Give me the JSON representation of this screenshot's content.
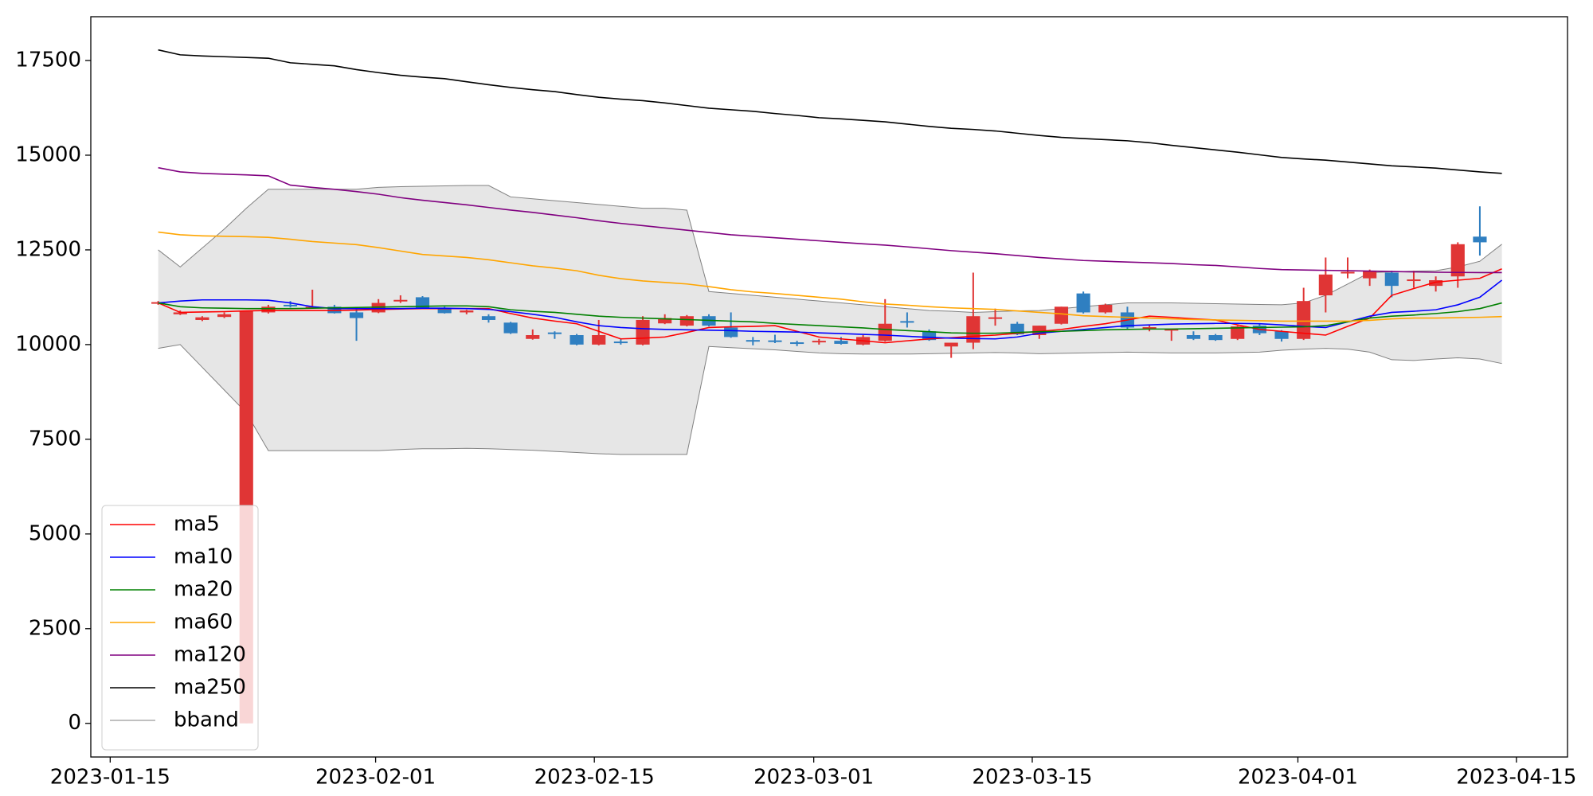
{
  "chart_data": {
    "type": "candlestick",
    "x": [
      0,
      1,
      2,
      3,
      4,
      5,
      6,
      7,
      8,
      9,
      10,
      11,
      12,
      13,
      14,
      15,
      16,
      17,
      18,
      19,
      20,
      21,
      22,
      23,
      24,
      25,
      26,
      27,
      28,
      29,
      30,
      31,
      32,
      33,
      34,
      35,
      36,
      37,
      38,
      39,
      40,
      41,
      42,
      43,
      44,
      45,
      46,
      47,
      48,
      49,
      50,
      51,
      52,
      53,
      54,
      55,
      56,
      57,
      58,
      59,
      60,
      61
    ],
    "open": [
      11100,
      10800,
      10650,
      10730,
      0,
      10850,
      11050,
      10980,
      11000,
      10850,
      10850,
      11150,
      11250,
      10950,
      10850,
      10750,
      10580,
      10150,
      10320,
      10250,
      10000,
      10080,
      10000,
      10560,
      10500,
      10750,
      10450,
      10120,
      10110,
      10060,
      10070,
      10100,
      10000,
      10100,
      10620,
      10350,
      9950,
      10050,
      10680,
      10550,
      10250,
      10550,
      11350,
      10850,
      10850,
      10440,
      10400,
      10250,
      10250,
      10150,
      10500,
      10350,
      10150,
      11300,
      11880,
      11750,
      11900,
      11680,
      11550,
      11800,
      12850,
      null
    ],
    "high": [
      11150,
      10900,
      10750,
      10850,
      10900,
      11050,
      11150,
      11450,
      11050,
      10950,
      11200,
      11300,
      11280,
      11000,
      10920,
      10800,
      10600,
      10400,
      10350,
      10280,
      10650,
      10150,
      10750,
      10800,
      10780,
      10800,
      10850,
      10200,
      10260,
      10100,
      10150,
      10200,
      10250,
      11200,
      10850,
      10400,
      10050,
      11900,
      10950,
      10600,
      10500,
      11000,
      11400,
      11080,
      11000,
      10520,
      10420,
      10350,
      10280,
      10500,
      10550,
      10380,
      11500,
      12300,
      12300,
      11980,
      11950,
      11950,
      11800,
      12700,
      13650,
      null
    ],
    "low": [
      11050,
      10780,
      10620,
      10700,
      0,
      10820,
      10980,
      10950,
      10820,
      10100,
      10830,
      11100,
      10950,
      10820,
      10800,
      10580,
      10280,
      10130,
      10150,
      9980,
      9980,
      10000,
      9980,
      10540,
      10480,
      10480,
      10180,
      9980,
      10040,
      9960,
      10000,
      10000,
      9980,
      10080,
      10450,
      10100,
      9650,
      9880,
      10500,
      10250,
      10150,
      10530,
      10820,
      10820,
      10400,
      10350,
      10100,
      10120,
      10100,
      10120,
      10250,
      10080,
      10120,
      10850,
      11750,
      11550,
      11250,
      11500,
      11400,
      11500,
      12350,
      null
    ],
    "close": [
      11120,
      10850,
      10720,
      10800,
      10880,
      11000,
      11030,
      11000,
      10830,
      10700,
      11100,
      11180,
      10960,
      10830,
      10900,
      10650,
      10300,
      10250,
      10280,
      10000,
      10250,
      10050,
      10650,
      10700,
      10750,
      10500,
      10200,
      10080,
      10080,
      10030,
      10100,
      10020,
      10200,
      10550,
      10580,
      10120,
      10050,
      10750,
      10720,
      10270,
      10500,
      11000,
      10850,
      11050,
      10450,
      10460,
      10410,
      10150,
      10120,
      10480,
      10300,
      10150,
      11150,
      11850,
      11920,
      11950,
      11550,
      11720,
      11700,
      12650,
      12700,
      null
    ],
    "up_color": "#e03535",
    "down_color": "#2f7fc1",
    "lines": [
      {
        "name": "ma5",
        "color": "#ff0000",
        "values": [
          11100,
          10850,
          10860,
          10870,
          10890,
          10900,
          10900,
          10900,
          10900,
          10910,
          10925,
          10940,
          10950,
          10950,
          10950,
          10950,
          10820,
          10700,
          10620,
          10550,
          10350,
          10150,
          10170,
          10200,
          10320,
          10450,
          10470,
          10480,
          10500,
          10350,
          10200,
          10150,
          10100,
          10050,
          10100,
          10150,
          10180,
          10220,
          10250,
          10300,
          10350,
          10400,
          10480,
          10550,
          10650,
          10750,
          10720,
          10680,
          10650,
          10520,
          10400,
          10350,
          10300,
          10250,
          10480,
          10700,
          11300,
          11480,
          11650,
          11700,
          11750,
          12000
        ]
      },
      {
        "name": "ma10",
        "color": "#0000ff",
        "values": [
          11100,
          11150,
          11180,
          11180,
          11180,
          11170,
          11100,
          11000,
          10950,
          10950,
          10950,
          10950,
          10960,
          10960,
          10950,
          10930,
          10870,
          10800,
          10720,
          10600,
          10500,
          10450,
          10420,
          10400,
          10390,
          10380,
          10370,
          10350,
          10340,
          10330,
          10310,
          10290,
          10270,
          10250,
          10220,
          10190,
          10170,
          10160,
          10150,
          10200,
          10300,
          10350,
          10400,
          10450,
          10500,
          10520,
          10540,
          10550,
          10560,
          10560,
          10550,
          10520,
          10480,
          10450,
          10600,
          10750,
          10850,
          10880,
          10920,
          11050,
          11250,
          11700
        ]
      },
      {
        "name": "ma20",
        "color": "#008000",
        "values": [
          11100,
          11000,
          10970,
          10960,
          10950,
          10950,
          10950,
          10960,
          10970,
          10980,
          10990,
          11000,
          11010,
          11020,
          11020,
          11000,
          10920,
          10880,
          10850,
          10800,
          10750,
          10720,
          10700,
          10680,
          10660,
          10640,
          10620,
          10600,
          10560,
          10530,
          10500,
          10470,
          10440,
          10400,
          10370,
          10340,
          10310,
          10300,
          10300,
          10320,
          10340,
          10350,
          10370,
          10390,
          10400,
          10410,
          10410,
          10420,
          10430,
          10440,
          10450,
          10460,
          10470,
          10500,
          10600,
          10700,
          10750,
          10780,
          10820,
          10870,
          10950,
          11100
        ]
      },
      {
        "name": "ma60",
        "color": "#ffa500",
        "values": [
          12970,
          12900,
          12870,
          12860,
          12850,
          12830,
          12780,
          12720,
          12680,
          12640,
          12560,
          12470,
          12380,
          12340,
          12300,
          12240,
          12160,
          12080,
          12020,
          11950,
          11830,
          11740,
          11680,
          11640,
          11600,
          11530,
          11450,
          11390,
          11350,
          11300,
          11250,
          11200,
          11130,
          11070,
          11040,
          11000,
          10970,
          10950,
          10930,
          10890,
          10850,
          10810,
          10760,
          10740,
          10720,
          10700,
          10680,
          10660,
          10650,
          10640,
          10630,
          10620,
          10620,
          10620,
          10620,
          10640,
          10680,
          10700,
          10700,
          10710,
          10720,
          10740
        ]
      },
      {
        "name": "ma120",
        "color": "#800080",
        "values": [
          14670,
          14560,
          14520,
          14500,
          14480,
          14455,
          14210,
          14150,
          14100,
          14040,
          13970,
          13880,
          13810,
          13750,
          13690,
          13620,
          13550,
          13490,
          13420,
          13350,
          13270,
          13200,
          13140,
          13080,
          13020,
          12960,
          12900,
          12860,
          12820,
          12780,
          12740,
          12700,
          12660,
          12625,
          12580,
          12530,
          12480,
          12440,
          12400,
          12350,
          12300,
          12260,
          12220,
          12200,
          12180,
          12160,
          12140,
          12110,
          12090,
          12050,
          12010,
          11980,
          11970,
          11960,
          11950,
          11940,
          11930,
          11920,
          11910,
          11905,
          11900,
          11900
        ]
      },
      {
        "name": "ma250",
        "color": "#000000",
        "values": [
          17780,
          17650,
          17620,
          17600,
          17580,
          17560,
          17440,
          17400,
          17360,
          17260,
          17180,
          17110,
          17060,
          17020,
          16940,
          16860,
          16790,
          16730,
          16680,
          16600,
          16530,
          16480,
          16440,
          16380,
          16310,
          16240,
          16200,
          16160,
          16100,
          16050,
          15990,
          15960,
          15920,
          15880,
          15820,
          15760,
          15710,
          15680,
          15640,
          15580,
          15520,
          15470,
          15440,
          15410,
          15380,
          15330,
          15260,
          15200,
          15140,
          15080,
          15010,
          14940,
          14900,
          14870,
          14820,
          14770,
          14720,
          14690,
          14660,
          14610,
          14560,
          14520
        ]
      }
    ],
    "band": {
      "name": "bband",
      "color": "#808080",
      "fill_color": "#e6e6e6",
      "upper": [
        12500,
        12050,
        12550,
        13050,
        13600,
        14100,
        14100,
        14100,
        14100,
        14100,
        14150,
        14170,
        14180,
        14190,
        14200,
        14200,
        13900,
        13850,
        13800,
        13750,
        13700,
        13650,
        13600,
        13600,
        13550,
        11400,
        11350,
        11300,
        11250,
        11200,
        11150,
        11100,
        11050,
        11000,
        10950,
        10900,
        10880,
        10850,
        10870,
        10890,
        10900,
        10950,
        11000,
        11050,
        11100,
        11100,
        11100,
        11090,
        11080,
        11070,
        11060,
        11050,
        11100,
        11300,
        11600,
        11900,
        11920,
        11940,
        11950,
        12050,
        12200,
        12650
      ],
      "lower": [
        9900,
        10000,
        9400,
        8800,
        8200,
        7200,
        7200,
        7200,
        7200,
        7200,
        7200,
        7230,
        7250,
        7250,
        7260,
        7250,
        7230,
        7210,
        7180,
        7150,
        7120,
        7100,
        7100,
        7100,
        7100,
        9950,
        9920,
        9890,
        9860,
        9820,
        9780,
        9760,
        9750,
        9750,
        9750,
        9760,
        9770,
        9780,
        9790,
        9780,
        9760,
        9770,
        9780,
        9790,
        9800,
        9790,
        9780,
        9780,
        9780,
        9790,
        9800,
        9850,
        9880,
        9900,
        9880,
        9800,
        9600,
        9580,
        9620,
        9650,
        9620,
        9500
      ]
    },
    "xlim": [
      -3.06,
      63.98
    ],
    "xticks": [
      {
        "value": -2.18,
        "label": "2023-01-15"
      },
      {
        "value": 9.87,
        "label": "2023-02-01"
      },
      {
        "value": 19.8,
        "label": "2023-02-15"
      },
      {
        "value": 29.76,
        "label": "2023-03-01"
      },
      {
        "value": 39.68,
        "label": "2023-03-15"
      },
      {
        "value": 51.74,
        "label": "2023-04-01"
      },
      {
        "value": 61.66,
        "label": "2023-04-15"
      }
    ],
    "ylim": [
      -888,
      18656
    ],
    "yticks": [
      0,
      2500,
      5000,
      7500,
      10000,
      12500,
      15000,
      17500
    ],
    "legend": "lower left"
  }
}
